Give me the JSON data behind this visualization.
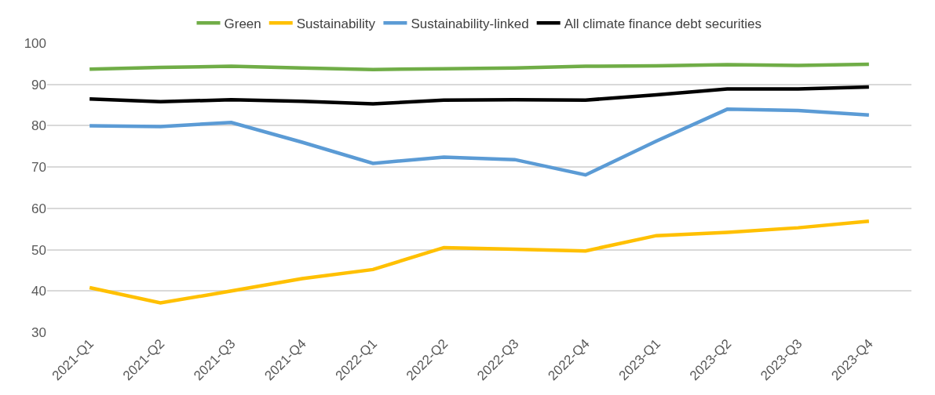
{
  "chart_data": {
    "type": "line",
    "categories": [
      "2021-Q1",
      "2021-Q2",
      "2021-Q3",
      "2021-Q4",
      "2022-Q1",
      "2022-Q2",
      "2022-Q3",
      "2022-Q4",
      "2023-Q1",
      "2023-Q2",
      "2023-Q3",
      "2023-Q4"
    ],
    "series": [
      {
        "name": "Green",
        "color": "#70ad47",
        "values": [
          93.7,
          94.1,
          94.4,
          94.0,
          93.6,
          93.8,
          94.0,
          94.4,
          94.5,
          94.8,
          94.6,
          94.9
        ]
      },
      {
        "name": "Sustainability",
        "color": "#ffc000",
        "values": [
          40.8,
          37.1,
          40.0,
          43.0,
          45.2,
          50.5,
          50.1,
          49.7,
          53.4,
          54.2,
          55.3,
          56.9
        ]
      },
      {
        "name": "Sustainability-linked",
        "color": "#5b9bd5",
        "values": [
          80.0,
          79.8,
          80.8,
          76.0,
          70.9,
          72.4,
          71.8,
          68.1,
          76.3,
          84.0,
          83.7,
          82.6
        ]
      },
      {
        "name": "All climate finance debt securities",
        "color": "#000000",
        "values": [
          86.5,
          85.8,
          86.3,
          85.9,
          85.3,
          86.2,
          86.3,
          86.2,
          87.5,
          88.9,
          88.9,
          89.4
        ]
      }
    ],
    "ylim": [
      30,
      100
    ],
    "yticks": [
      30,
      40,
      50,
      60,
      70,
      80,
      90,
      100
    ],
    "grid": "y",
    "legend": "top",
    "marker": "none",
    "line_style": "solid"
  }
}
